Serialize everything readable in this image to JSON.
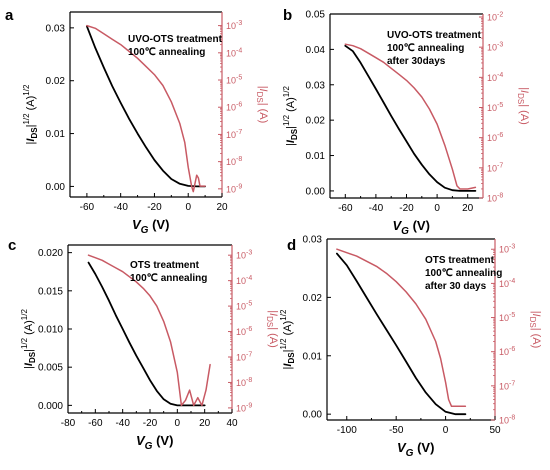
{
  "colors": {
    "black_series": "#000000",
    "red_series": "#c85a64",
    "red_axis": "#c85a64"
  },
  "chart_data": [
    {
      "id": "a",
      "type": "line",
      "panel_label": "a",
      "annotation": [
        "UVO-OTS treatment",
        "100℃ annealing"
      ],
      "xlabel": "V_G (V)",
      "ylabel_left": "|I_DS|^1/2 (A)^1/2",
      "ylabel_right": "|I_DS| (A)",
      "xlim": [
        -70,
        20
      ],
      "ylim_left": [
        -0.002,
        0.033
      ],
      "ylim_right_log": [
        -9.3,
        -2.5
      ],
      "xticks": [
        -60,
        -40,
        -20,
        0,
        20
      ],
      "xtick_labels": [
        "-60",
        "-40",
        "-20",
        "0",
        "20"
      ],
      "yticks_left": [
        0.0,
        0.01,
        0.02,
        0.03
      ],
      "ytick_labels_left": [
        "0.00",
        "0.01",
        "0.02",
        "0.03"
      ],
      "yticks_right_exp": [
        -9,
        -8,
        -7,
        -6,
        -5,
        -4,
        -3
      ],
      "series": [
        {
          "axis": "left",
          "color": "#000000",
          "x": [
            -60,
            -55,
            -50,
            -45,
            -40,
            -35,
            -30,
            -25,
            -20,
            -15,
            -10,
            -5,
            0,
            5,
            10
          ],
          "y": [
            0.0303,
            0.0262,
            0.0225,
            0.019,
            0.0158,
            0.0128,
            0.01,
            0.0074,
            0.005,
            0.003,
            0.0014,
            0.0005,
            0.0001,
            0.0,
            0.0
          ]
        },
        {
          "axis": "right",
          "color": "#c85a64",
          "x": [
            -60,
            -55,
            -50,
            -45,
            -40,
            -35,
            -30,
            -25,
            -20,
            -15,
            -10,
            -5,
            -2,
            0,
            2,
            3,
            4,
            5,
            6,
            7,
            8,
            10
          ],
          "logy": [
            -3.0,
            -3.1,
            -3.3,
            -3.5,
            -3.7,
            -3.95,
            -4.2,
            -4.5,
            -4.8,
            -5.2,
            -5.8,
            -6.6,
            -7.3,
            -8.2,
            -8.9,
            -9.1,
            -8.8,
            -8.5,
            -8.6,
            -8.9,
            -8.9,
            -8.9
          ]
        }
      ]
    },
    {
      "id": "b",
      "type": "line",
      "panel_label": "b",
      "annotation": [
        "UVO-OTS treatment",
        "100℃ annealing",
        "after 30days"
      ],
      "xlabel": "V_G (V)",
      "ylabel_left": "|I_DS|^1/2 (A)^1/2",
      "ylabel_right": "|I_DS| (A)",
      "xlim": [
        -70,
        30
      ],
      "ylim_left": [
        -0.002,
        0.05
      ],
      "ylim_right_log": [
        -8.0,
        -1.9
      ],
      "xticks": [
        -60,
        -40,
        -20,
        0,
        20
      ],
      "xtick_labels": [
        "-60",
        "-40",
        "-20",
        "0",
        "20"
      ],
      "yticks_left": [
        0.0,
        0.01,
        0.02,
        0.03,
        0.04,
        0.05
      ],
      "ytick_labels_left": [
        "0.00",
        "0.01",
        "0.02",
        "0.03",
        "0.04",
        "0.05"
      ],
      "yticks_right_exp": [
        -8,
        -7,
        -6,
        -5,
        -4,
        -3,
        -2
      ],
      "series": [
        {
          "axis": "left",
          "color": "#000000",
          "x": [
            -60,
            -55,
            -50,
            -45,
            -40,
            -35,
            -30,
            -25,
            -20,
            -15,
            -10,
            -5,
            0,
            5,
            10,
            15,
            20,
            25
          ],
          "y": [
            0.041,
            0.0395,
            0.0362,
            0.0325,
            0.0288,
            0.025,
            0.0212,
            0.0175,
            0.014,
            0.0105,
            0.0074,
            0.0047,
            0.0025,
            0.0009,
            0.0002,
            0.0,
            0.0,
            0.0
          ]
        },
        {
          "axis": "right",
          "color": "#c85a64",
          "x": [
            -60,
            -55,
            -50,
            -45,
            -40,
            -35,
            -30,
            -25,
            -20,
            -15,
            -10,
            -5,
            0,
            5,
            10,
            13,
            15,
            20,
            25
          ],
          "logy": [
            -2.9,
            -2.95,
            -3.05,
            -3.2,
            -3.35,
            -3.5,
            -3.7,
            -3.9,
            -4.1,
            -4.35,
            -4.65,
            -5.05,
            -5.55,
            -6.25,
            -7.05,
            -7.6,
            -7.7,
            -7.7,
            -7.65
          ]
        }
      ]
    },
    {
      "id": "c",
      "type": "line",
      "panel_label": "c",
      "annotation": [
        "OTS treatment",
        "100℃ annealing"
      ],
      "xlabel": "V_G (V)",
      "ylabel_left": "|I_DS|^1/2 (A)^1/2",
      "ylabel_right": "|I_DS| (A)",
      "xlim": [
        -80,
        40
      ],
      "ylim_left": [
        -0.001,
        0.021
      ],
      "ylim_right_log": [
        -9.2,
        -2.6
      ],
      "xticks": [
        -80,
        -60,
        -40,
        -20,
        0,
        20,
        40
      ],
      "xtick_labels": [
        "-80",
        "-60",
        "-40",
        "-20",
        "0",
        "20",
        "40"
      ],
      "yticks_left": [
        0.0,
        0.005,
        0.01,
        0.015,
        0.02
      ],
      "ytick_labels_left": [
        "0.000",
        "0.005",
        "0.010",
        "0.015",
        "0.020"
      ],
      "yticks_right_exp": [
        -9,
        -8,
        -7,
        -6,
        -5,
        -4,
        -3
      ],
      "series": [
        {
          "axis": "left",
          "color": "#000000",
          "x": [
            -65,
            -60,
            -55,
            -50,
            -45,
            -40,
            -35,
            -30,
            -25,
            -20,
            -15,
            -10,
            -5,
            0,
            5,
            10,
            15,
            20
          ],
          "y": [
            0.0187,
            0.0172,
            0.0155,
            0.0137,
            0.0118,
            0.01,
            0.0082,
            0.0065,
            0.0049,
            0.0033,
            0.0019,
            0.0008,
            0.0002,
            0.0,
            0.0,
            0.0,
            0.0,
            0.0
          ]
        },
        {
          "axis": "right",
          "color": "#c85a64",
          "x": [
            -65,
            -60,
            -55,
            -50,
            -45,
            -40,
            -35,
            -30,
            -25,
            -20,
            -15,
            -10,
            -5,
            0,
            3,
            6,
            9,
            12,
            15,
            18,
            21,
            24
          ],
          "logy": [
            -3.0,
            -3.1,
            -3.2,
            -3.35,
            -3.5,
            -3.65,
            -3.85,
            -4.05,
            -4.3,
            -4.6,
            -5.0,
            -5.6,
            -6.4,
            -7.6,
            -8.9,
            -8.7,
            -8.3,
            -8.9,
            -8.6,
            -8.9,
            -8.3,
            -7.3
          ]
        }
      ]
    },
    {
      "id": "d",
      "type": "line",
      "panel_label": "d",
      "annotation": [
        "OTS treatment",
        "100℃ annealing",
        "after 30 days"
      ],
      "xlabel": "V_G (V)",
      "ylabel_left": "|I_DS|^1/2 (A)^1/2",
      "ylabel_right": "|I_DS| (A)",
      "xlim": [
        -120,
        50
      ],
      "ylim_left": [
        -0.001,
        0.03
      ],
      "ylim_right_log": [
        -8.0,
        -2.7
      ],
      "xticks": [
        -100,
        -50,
        0,
        50
      ],
      "xtick_labels": [
        "-100",
        "-50",
        "0",
        "50"
      ],
      "yticks_left": [
        0.0,
        0.01,
        0.02,
        0.03
      ],
      "ytick_labels_left": [
        "0.00",
        "0.01",
        "0.02",
        "0.03"
      ],
      "yticks_right_exp": [
        -8,
        -7,
        -6,
        -5,
        -4,
        -3
      ],
      "series": [
        {
          "axis": "left",
          "color": "#000000",
          "x": [
            -110,
            -100,
            -90,
            -80,
            -70,
            -60,
            -50,
            -40,
            -30,
            -20,
            -10,
            0,
            10,
            20
          ],
          "y": [
            0.0275,
            0.0255,
            0.0228,
            0.02,
            0.0172,
            0.0145,
            0.0118,
            0.009,
            0.0062,
            0.0037,
            0.0017,
            0.0004,
            0.0,
            0.0
          ]
        },
        {
          "axis": "right",
          "color": "#c85a64",
          "x": [
            -110,
            -100,
            -90,
            -80,
            -70,
            -60,
            -50,
            -40,
            -30,
            -20,
            -10,
            -5,
            0,
            3,
            6,
            10,
            20
          ],
          "logy": [
            -3.0,
            -3.1,
            -3.2,
            -3.35,
            -3.5,
            -3.7,
            -3.95,
            -4.25,
            -4.6,
            -5.05,
            -5.7,
            -6.2,
            -6.9,
            -7.4,
            -7.6,
            -7.6,
            -7.6
          ]
        }
      ]
    }
  ]
}
